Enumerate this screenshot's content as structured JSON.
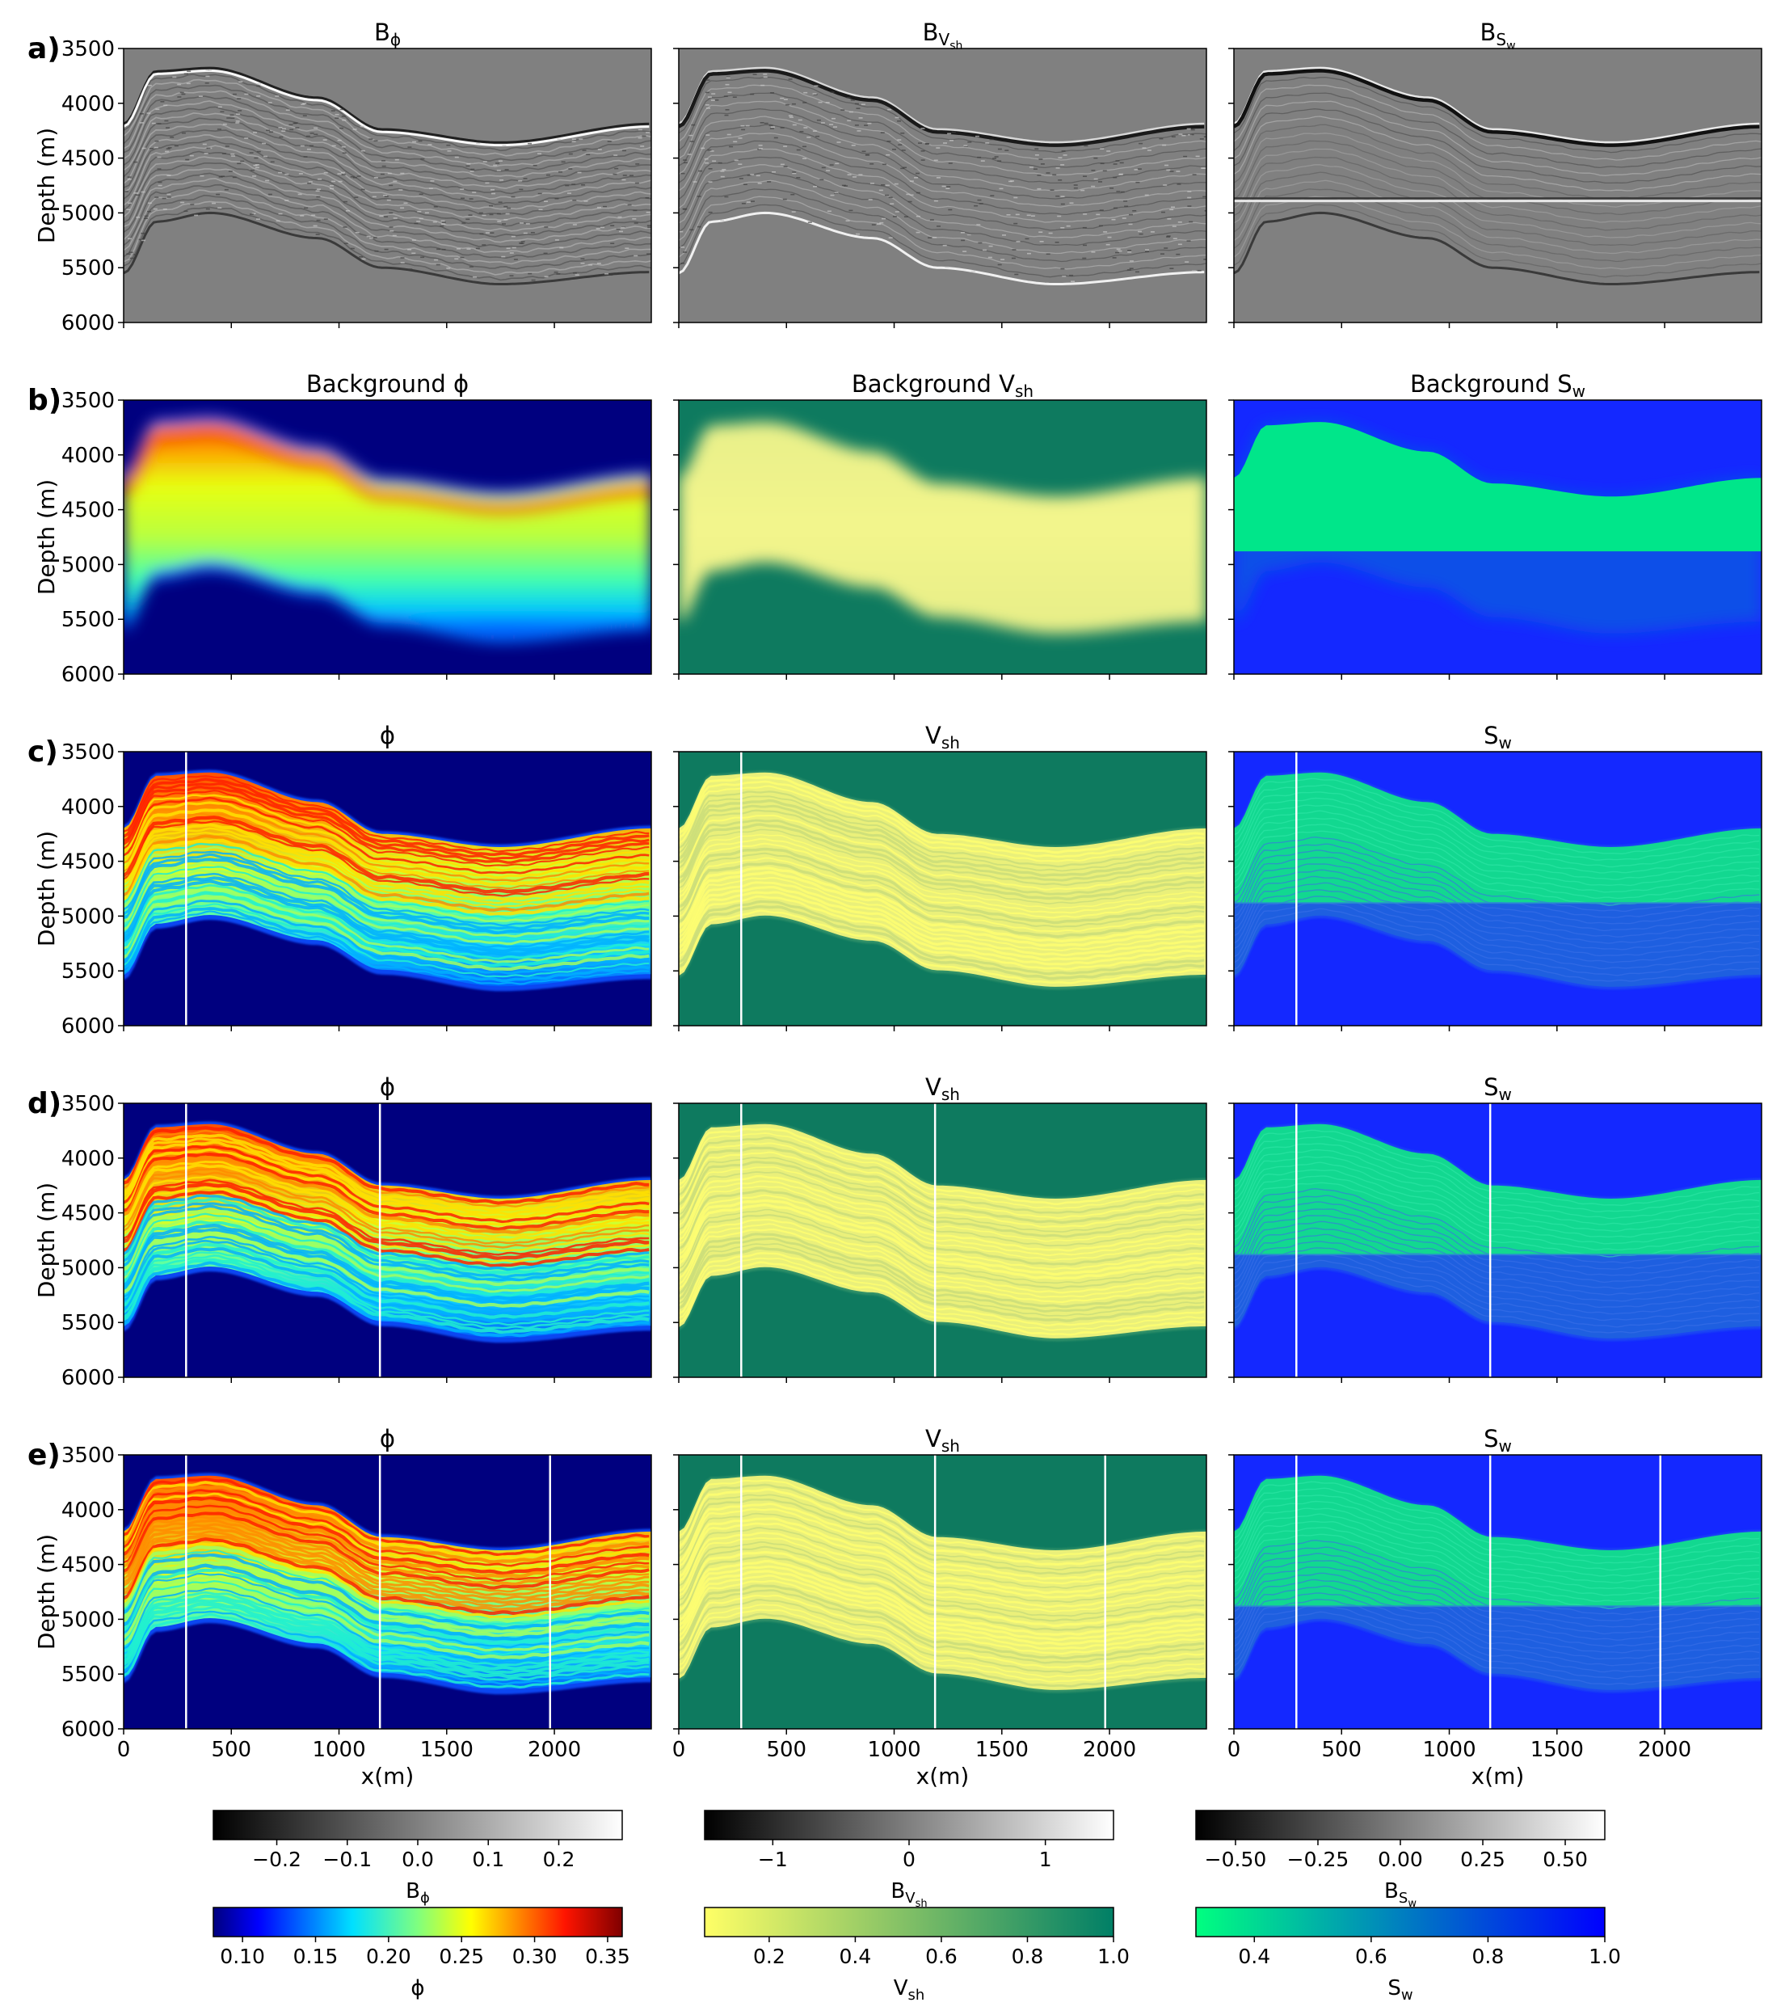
{
  "figure": {
    "row_labels": [
      "a)",
      "b)",
      "c)",
      "d)",
      "e)"
    ],
    "depth_label": "Depth (m)",
    "x_label": "x(m)",
    "depth_ticks": [
      "3500",
      "4000",
      "4500",
      "5000",
      "5500",
      "6000"
    ],
    "x_ticks": [
      "0",
      "500",
      "1000",
      "1500",
      "2000"
    ],
    "colors": {
      "grey_mid": "#7f7f7f",
      "phi_bg": "#00007f",
      "vsh_bg": "#0e7a5f",
      "sw_bg": "#1428ff",
      "well_line": "#ffffff"
    }
  },
  "rows": [
    {
      "label": "a)",
      "titles": [
        {
          "base": "B",
          "sub": "ϕ",
          "subsub": ""
        },
        {
          "base": "B",
          "sub": "V",
          "subsub": "sh"
        },
        {
          "base": "B",
          "sub": "S",
          "subsub": "w"
        }
      ]
    },
    {
      "label": "b)",
      "titles": [
        {
          "base": "Background ϕ",
          "sub": "",
          "subsub": ""
        },
        {
          "base": "Background V",
          "sub": "sh",
          "subsub": ""
        },
        {
          "base": "Background S",
          "sub": "w",
          "subsub": ""
        }
      ]
    },
    {
      "label": "c)",
      "titles": [
        {
          "base": "ϕ",
          "sub": "",
          "subsub": ""
        },
        {
          "base": "V",
          "sub": "sh",
          "subsub": ""
        },
        {
          "base": "S",
          "sub": "w",
          "subsub": ""
        }
      ]
    },
    {
      "label": "d)",
      "titles": [
        {
          "base": "ϕ",
          "sub": "",
          "subsub": ""
        },
        {
          "base": "V",
          "sub": "sh",
          "subsub": ""
        },
        {
          "base": "S",
          "sub": "w",
          "subsub": ""
        }
      ]
    },
    {
      "label": "e)",
      "titles": [
        {
          "base": "ϕ",
          "sub": "",
          "subsub": ""
        },
        {
          "base": "V",
          "sub": "sh",
          "subsub": ""
        },
        {
          "base": "S",
          "sub": "w",
          "subsub": ""
        }
      ]
    }
  ],
  "chart_data": {
    "type": "heatmap",
    "x_range": [
      0,
      2450
    ],
    "depth_range": [
      3500,
      6000
    ],
    "depth_inverted": true,
    "reservoir_top_depth": [
      [
        0,
        4200
      ],
      [
        150,
        3720
      ],
      [
        400,
        3690
      ],
      [
        900,
        3960
      ],
      [
        1200,
        4250
      ],
      [
        1750,
        4370
      ],
      [
        2450,
        4200
      ]
    ],
    "reservoir_base_depth": [
      [
        0,
        5550
      ],
      [
        150,
        5080
      ],
      [
        400,
        5000
      ],
      [
        900,
        5230
      ],
      [
        1200,
        5500
      ],
      [
        1750,
        5650
      ],
      [
        2450,
        5540
      ]
    ],
    "gas_water_contact_depth": 4880,
    "wells_x": {
      "c": [
        290
      ],
      "d": [
        290,
        1190
      ],
      "e": [
        290,
        1190,
        1980
      ]
    },
    "colorbars": [
      {
        "label_base": "B",
        "label_sub": "ϕ",
        "label_subsub": "",
        "cmap": "gray",
        "range": [
          -0.29,
          0.29
        ],
        "ticks": [
          -0.2,
          -0.1,
          0.0,
          0.1,
          0.2
        ],
        "tick_labels": [
          "−0.2",
          "−0.1",
          "0.0",
          "0.1",
          "0.2"
        ]
      },
      {
        "label_base": "B",
        "label_sub": "V",
        "label_subsub": "sh",
        "cmap": "gray",
        "range": [
          -1.5,
          1.5
        ],
        "ticks": [
          -1,
          0,
          1
        ],
        "tick_labels": [
          "−1",
          "0",
          "1"
        ]
      },
      {
        "label_base": "B",
        "label_sub": "S",
        "label_subsub": "w",
        "cmap": "gray",
        "range": [
          -0.62,
          0.62
        ],
        "ticks": [
          -0.5,
          -0.25,
          0.0,
          0.25,
          0.5
        ],
        "tick_labels": [
          "−0.50",
          "−0.25",
          "0.00",
          "0.25",
          "0.50"
        ]
      },
      {
        "label_base": "ϕ",
        "label_sub": "",
        "label_subsub": "",
        "cmap": "jet",
        "range": [
          0.08,
          0.36
        ],
        "ticks": [
          0.1,
          0.15,
          0.2,
          0.25,
          0.3,
          0.35
        ],
        "tick_labels": [
          "0.10",
          "0.15",
          "0.20",
          "0.25",
          "0.30",
          "0.35"
        ]
      },
      {
        "label_base": "V",
        "label_sub": "sh",
        "label_subsub": "",
        "cmap": "summer_r",
        "range": [
          0.05,
          1.0
        ],
        "ticks": [
          0.2,
          0.4,
          0.6,
          0.8,
          1.0
        ],
        "tick_labels": [
          "0.2",
          "0.4",
          "0.6",
          "0.8",
          "1.0"
        ]
      },
      {
        "label_base": "S",
        "label_sub": "w",
        "label_subsub": "",
        "cmap": "winter_r",
        "range": [
          0.3,
          1.0
        ],
        "ticks": [
          0.4,
          0.6,
          0.8,
          1.0
        ],
        "tick_labels": [
          "0.4",
          "0.6",
          "0.8",
          "1.0"
        ]
      }
    ]
  }
}
